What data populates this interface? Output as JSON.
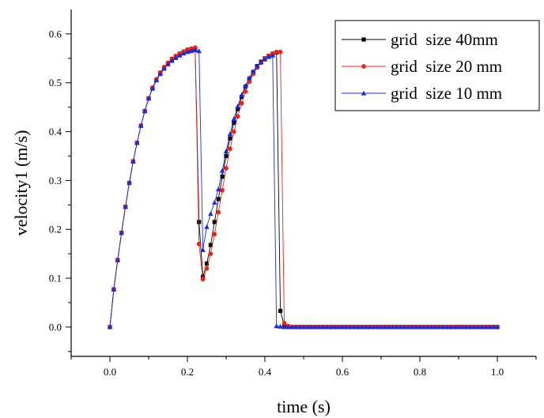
{
  "chart_data": {
    "type": "line",
    "xlabel": "time (s)",
    "ylabel": "velocity1 (m/s)",
    "xlim": [
      -0.1,
      1.1
    ],
    "ylim": [
      -0.06,
      0.65
    ],
    "xticks": [
      0.0,
      0.2,
      0.4,
      0.6,
      0.8,
      1.0
    ],
    "xtick_labels": [
      "0.0",
      "0.2",
      "0.4",
      "0.6",
      "0.8",
      "1.0"
    ],
    "yticks": [
      0.0,
      0.1,
      0.2,
      0.3,
      0.4,
      0.5,
      0.6
    ],
    "ytick_labels": [
      "0.0",
      "0.1",
      "0.2",
      "0.3",
      "0.4",
      "0.5",
      "0.6"
    ],
    "grid": false,
    "legend_position": "top-right",
    "series": [
      {
        "name": "grid  size 40mm",
        "color": "#000000",
        "marker": "square",
        "x": [
          0.0,
          0.01,
          0.02,
          0.03,
          0.04,
          0.05,
          0.06,
          0.07,
          0.08,
          0.09,
          0.1,
          0.11,
          0.12,
          0.13,
          0.14,
          0.15,
          0.16,
          0.17,
          0.18,
          0.19,
          0.2,
          0.21,
          0.22,
          0.23,
          0.24,
          0.25,
          0.26,
          0.27,
          0.28,
          0.29,
          0.3,
          0.31,
          0.32,
          0.33,
          0.34,
          0.35,
          0.36,
          0.37,
          0.38,
          0.39,
          0.4,
          0.41,
          0.42,
          0.43,
          0.44,
          0.45,
          0.46,
          0.47,
          0.48,
          0.49,
          0.5,
          0.51,
          0.52,
          0.53,
          0.54,
          0.55,
          0.56,
          0.57,
          0.58,
          0.59,
          0.6,
          0.61,
          0.62,
          0.63,
          0.64,
          0.65,
          0.66,
          0.67,
          0.68,
          0.69,
          0.7,
          0.71,
          0.72,
          0.73,
          0.74,
          0.75,
          0.76,
          0.77,
          0.78,
          0.79,
          0.8,
          0.81,
          0.82,
          0.83,
          0.84,
          0.85,
          0.86,
          0.87,
          0.88,
          0.89,
          0.9,
          0.91,
          0.92,
          0.93,
          0.94,
          0.95,
          0.96,
          0.97,
          0.98,
          0.99,
          1.0
        ],
        "y": [
          0.0,
          0.077,
          0.137,
          0.193,
          0.246,
          0.295,
          0.339,
          0.377,
          0.412,
          0.442,
          0.468,
          0.489,
          0.506,
          0.52,
          0.531,
          0.54,
          0.548,
          0.554,
          0.559,
          0.563,
          0.566,
          0.568,
          0.57,
          0.215,
          0.103,
          0.13,
          0.168,
          0.215,
          0.262,
          0.308,
          0.35,
          0.386,
          0.418,
          0.446,
          0.471,
          0.492,
          0.508,
          0.522,
          0.534,
          0.543,
          0.55,
          0.555,
          0.559,
          0.562,
          0.033,
          0.004,
          0.001,
          0.0,
          0.0,
          0.0,
          0.0,
          0.0,
          0.0,
          0.0,
          0.0,
          0.0,
          0.0,
          0.0,
          0.0,
          0.0,
          0.0,
          0.0,
          0.0,
          0.0,
          0.0,
          0.0,
          0.0,
          0.0,
          0.0,
          0.0,
          0.0,
          0.0,
          0.0,
          0.0,
          0.0,
          0.0,
          0.0,
          0.0,
          0.0,
          0.0,
          0.0,
          0.0,
          0.0,
          0.0,
          0.0,
          0.0,
          0.0,
          0.0,
          0.0,
          0.0,
          0.0,
          0.0,
          0.0,
          0.0,
          0.0,
          0.0,
          0.0,
          0.0,
          0.0,
          0.0,
          0.0
        ]
      },
      {
        "name": "grid  size 20 mm",
        "color": "#e8261e",
        "marker": "circle",
        "x": [
          0.0,
          0.01,
          0.02,
          0.03,
          0.04,
          0.05,
          0.06,
          0.07,
          0.08,
          0.09,
          0.1,
          0.11,
          0.12,
          0.13,
          0.14,
          0.15,
          0.16,
          0.17,
          0.18,
          0.19,
          0.2,
          0.21,
          0.22,
          0.23,
          0.24,
          0.25,
          0.26,
          0.27,
          0.28,
          0.29,
          0.3,
          0.31,
          0.32,
          0.33,
          0.34,
          0.35,
          0.36,
          0.37,
          0.38,
          0.39,
          0.4,
          0.41,
          0.42,
          0.43,
          0.44,
          0.45,
          0.46,
          0.47,
          0.48,
          0.49,
          0.5,
          0.51,
          0.52,
          0.53,
          0.54,
          0.55,
          0.56,
          0.57,
          0.58,
          0.59,
          0.6,
          0.61,
          0.62,
          0.63,
          0.64,
          0.65,
          0.66,
          0.67,
          0.68,
          0.69,
          0.7,
          0.71,
          0.72,
          0.73,
          0.74,
          0.75,
          0.76,
          0.77,
          0.78,
          0.79,
          0.8,
          0.81,
          0.82,
          0.83,
          0.84,
          0.85,
          0.86,
          0.87,
          0.88,
          0.89,
          0.9,
          0.91,
          0.92,
          0.93,
          0.94,
          0.95,
          0.96,
          0.97,
          0.98,
          0.99,
          1.0
        ],
        "y": [
          0.0,
          0.077,
          0.137,
          0.193,
          0.246,
          0.295,
          0.339,
          0.377,
          0.412,
          0.442,
          0.468,
          0.49,
          0.507,
          0.521,
          0.532,
          0.541,
          0.549,
          0.555,
          0.56,
          0.564,
          0.568,
          0.57,
          0.572,
          0.17,
          0.098,
          0.12,
          0.15,
          0.19,
          0.235,
          0.28,
          0.325,
          0.365,
          0.4,
          0.431,
          0.458,
          0.482,
          0.502,
          0.518,
          0.531,
          0.541,
          0.549,
          0.555,
          0.56,
          0.563,
          0.563,
          0.008,
          0.002,
          0.0,
          0.0,
          0.0,
          0.0,
          0.0,
          0.0,
          0.0,
          0.0,
          0.0,
          0.0,
          0.0,
          0.0,
          0.0,
          0.0,
          0.0,
          0.0,
          0.0,
          0.0,
          0.0,
          0.0,
          0.0,
          0.0,
          0.0,
          0.0,
          0.0,
          0.0,
          0.0,
          0.0,
          0.0,
          0.0,
          0.0,
          0.0,
          0.0,
          0.0,
          0.0,
          0.0,
          0.0,
          0.0,
          0.0,
          0.0,
          0.0,
          0.0,
          0.0,
          0.0,
          0.0,
          0.0,
          0.0,
          0.0,
          0.0,
          0.0,
          0.0,
          0.0,
          0.0,
          0.0
        ]
      },
      {
        "name": "grid  size 10 mm",
        "color": "#1f2bd6",
        "marker": "triangle",
        "x": [
          0.0,
          0.01,
          0.02,
          0.03,
          0.04,
          0.05,
          0.06,
          0.07,
          0.08,
          0.09,
          0.1,
          0.11,
          0.12,
          0.13,
          0.14,
          0.15,
          0.16,
          0.17,
          0.18,
          0.19,
          0.2,
          0.21,
          0.22,
          0.23,
          0.24,
          0.25,
          0.26,
          0.27,
          0.28,
          0.29,
          0.3,
          0.31,
          0.32,
          0.33,
          0.34,
          0.35,
          0.36,
          0.37,
          0.38,
          0.39,
          0.4,
          0.41,
          0.42,
          0.43,
          0.44,
          0.45,
          0.46,
          0.47,
          0.48,
          0.49,
          0.5,
          0.51,
          0.52,
          0.53,
          0.54,
          0.55,
          0.56,
          0.57,
          0.58,
          0.59,
          0.6,
          0.61,
          0.62,
          0.63,
          0.64,
          0.65,
          0.66,
          0.67,
          0.68,
          0.69,
          0.7,
          0.71,
          0.72,
          0.73,
          0.74,
          0.75,
          0.76,
          0.77,
          0.78,
          0.79,
          0.8,
          0.81,
          0.82,
          0.83,
          0.84,
          0.85,
          0.86,
          0.87,
          0.88,
          0.89,
          0.9,
          0.91,
          0.92,
          0.93,
          0.94,
          0.95,
          0.96,
          0.97,
          0.98,
          0.99,
          1.0
        ],
        "y": [
          0.0,
          0.077,
          0.137,
          0.193,
          0.246,
          0.295,
          0.339,
          0.377,
          0.412,
          0.442,
          0.468,
          0.488,
          0.505,
          0.518,
          0.529,
          0.538,
          0.545,
          0.551,
          0.556,
          0.56,
          0.563,
          0.565,
          0.567,
          0.565,
          0.158,
          0.205,
          0.232,
          0.255,
          0.282,
          0.32,
          0.36,
          0.395,
          0.426,
          0.452,
          0.475,
          0.494,
          0.51,
          0.523,
          0.534,
          0.542,
          0.548,
          0.553,
          0.556,
          0.002,
          0.001,
          0.0,
          0.0,
          0.0,
          0.0,
          0.0,
          0.0,
          0.0,
          0.0,
          0.0,
          0.0,
          0.0,
          0.0,
          0.0,
          0.0,
          0.0,
          0.0,
          0.0,
          0.0,
          0.0,
          0.0,
          0.0,
          0.0,
          0.0,
          0.0,
          0.0,
          0.0,
          0.0,
          0.0,
          0.0,
          0.0,
          0.0,
          0.0,
          0.0,
          0.0,
          0.0,
          0.0,
          0.0,
          0.0,
          0.0,
          0.0,
          0.0,
          0.0,
          0.0,
          0.0,
          0.0,
          0.0,
          0.0,
          0.0,
          0.0,
          0.0,
          0.0,
          0.0,
          0.0,
          0.0,
          0.0,
          0.0
        ]
      }
    ]
  }
}
